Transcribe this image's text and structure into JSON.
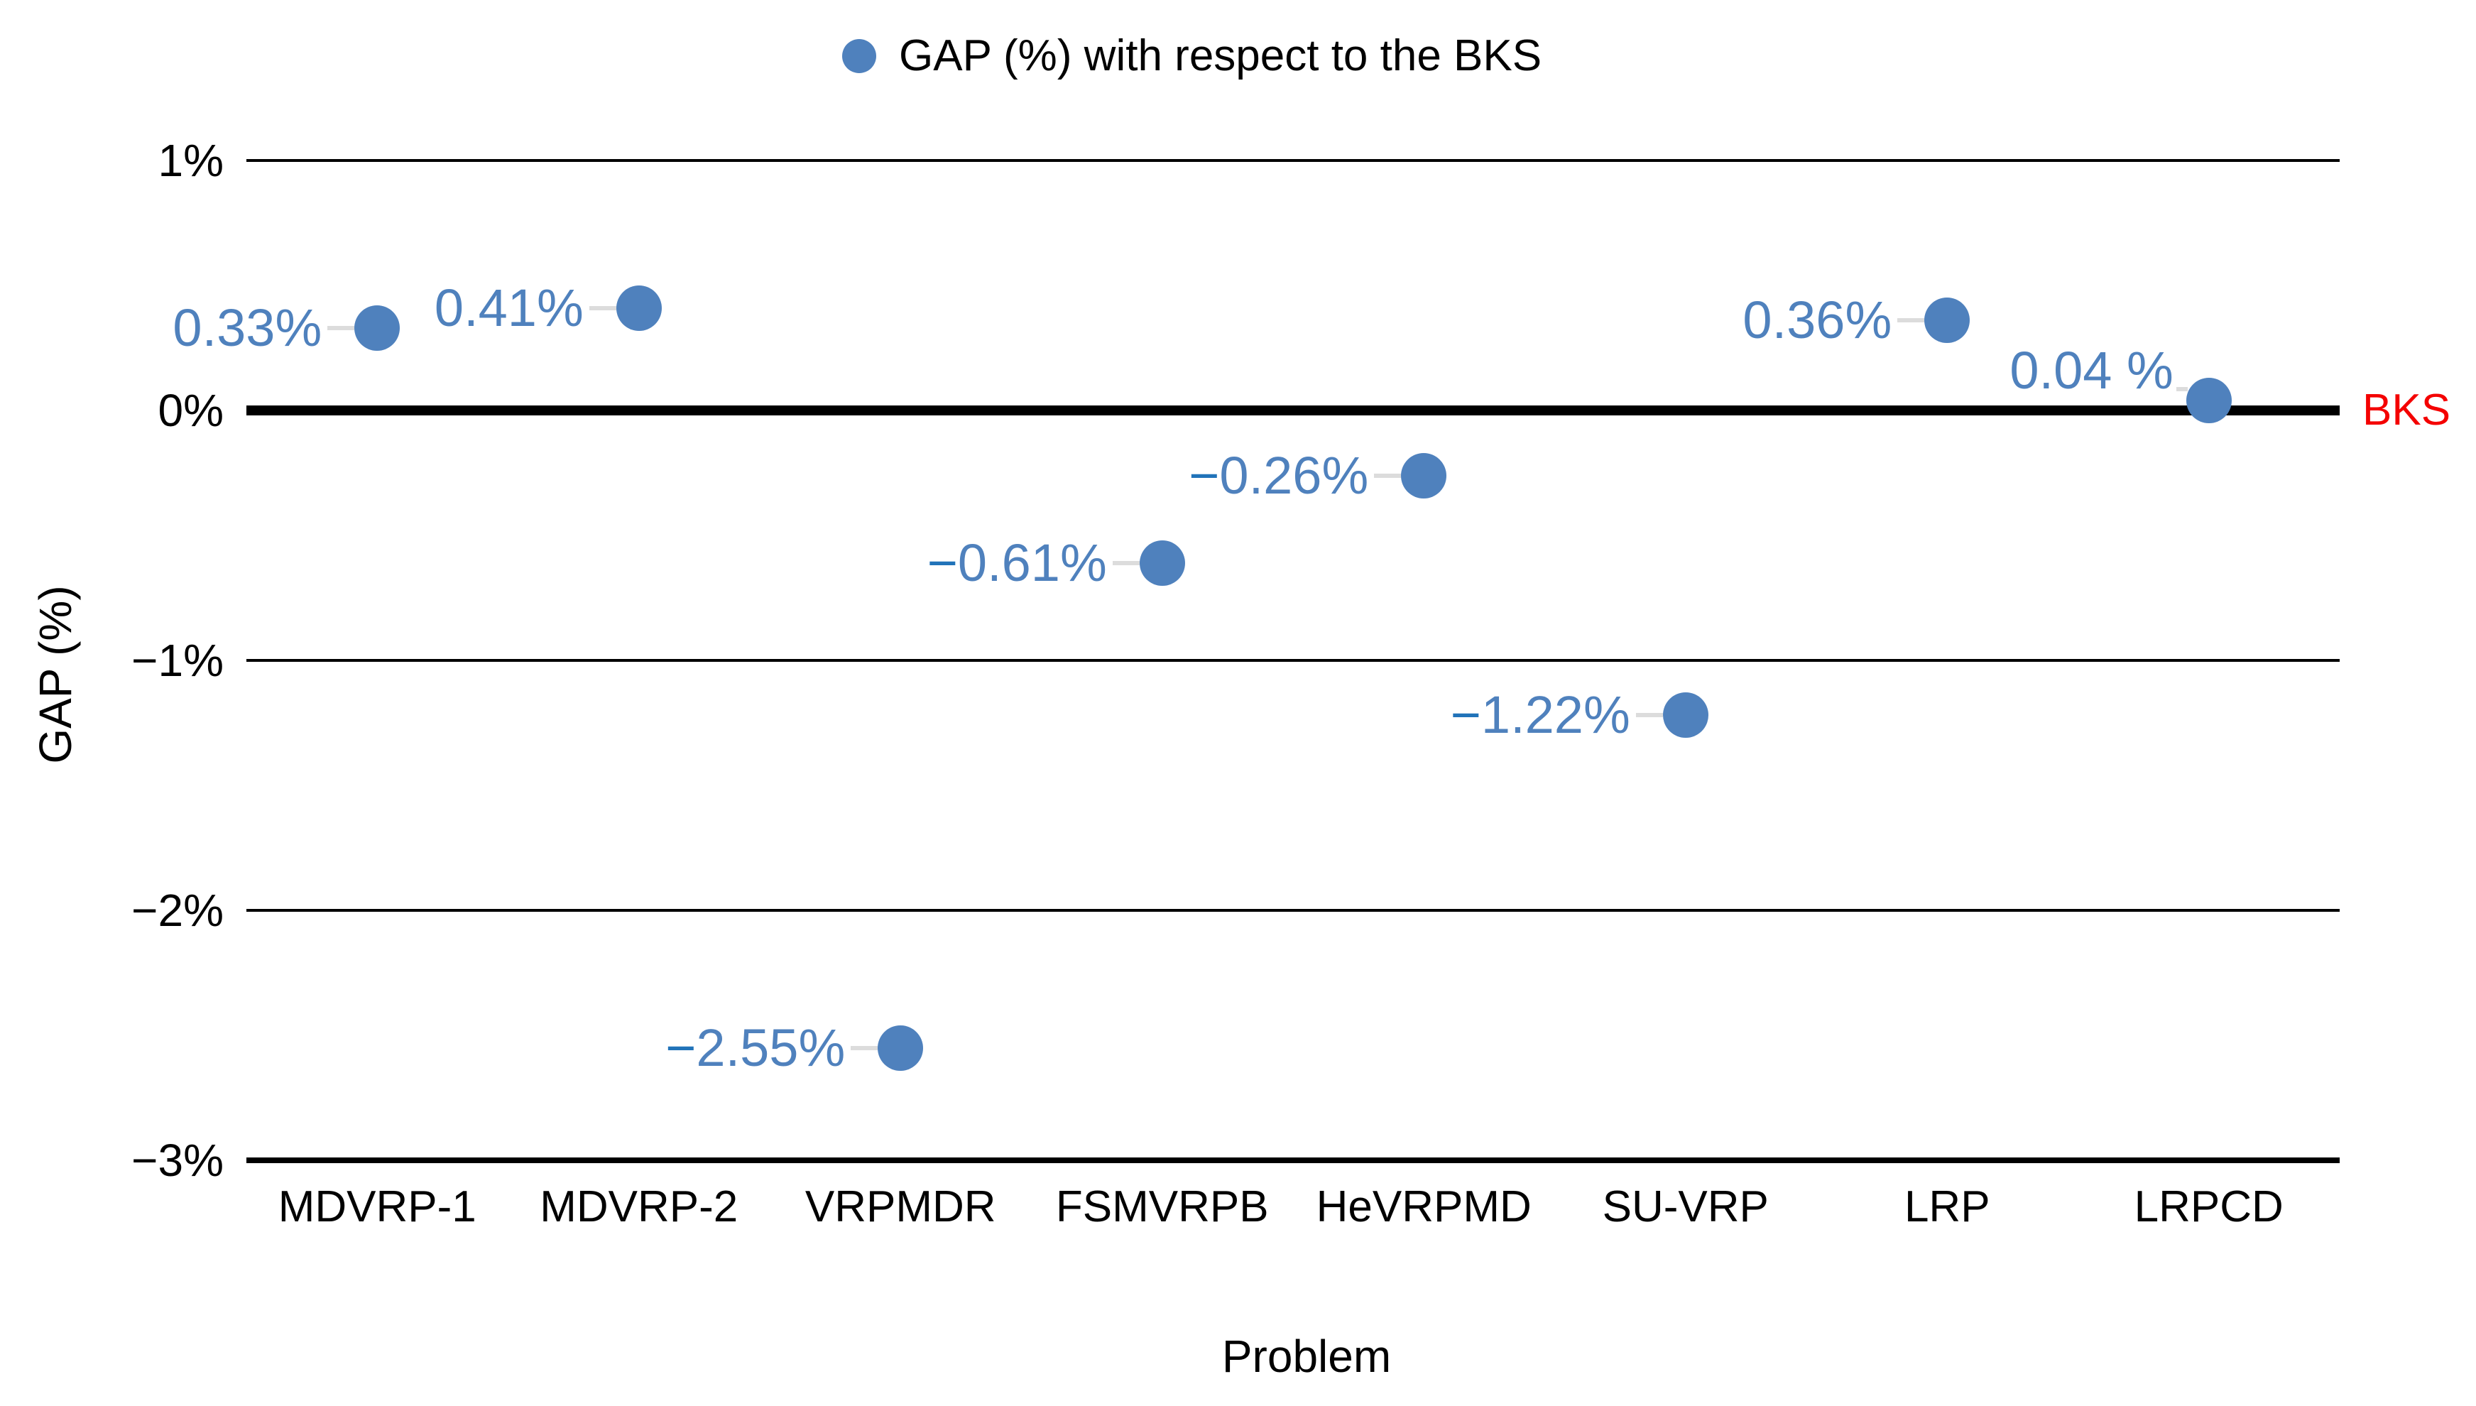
{
  "chart_data": {
    "type": "scatter",
    "title": "",
    "legend_label": "GAP (%) with respect to the BKS",
    "legend_position": "top-center",
    "xlabel": "Problem",
    "ylabel": "GAP (%)",
    "categories": [
      "MDVRP-1",
      "MDVRP-2",
      "VRPMDR",
      "FSMVRPB",
      "HeVRPMD",
      "SU-VRP",
      "LRP",
      "LRPCD"
    ],
    "values": [
      0.33,
      0.41,
      -2.55,
      -0.61,
      -0.26,
      -1.22,
      0.36,
      0.04
    ],
    "point_labels": [
      "0.33%",
      "0.41%",
      "−2.55%",
      "−0.61%",
      "−0.26%",
      "−1.22%",
      "0.36%",
      "0.04 %"
    ],
    "ylim": [
      -3,
      1
    ],
    "y_ticks": [
      {
        "value": 1,
        "label": "1%"
      },
      {
        "value": 0,
        "label": "0%"
      },
      {
        "value": -1,
        "label": "−1%"
      },
      {
        "value": -2,
        "label": "−2%"
      },
      {
        "value": -3,
        "label": "−3%"
      }
    ],
    "grid": "horizontal",
    "reference_line": {
      "value": 0,
      "label": "BKS"
    },
    "colors": {
      "marker": "#4f81bd",
      "point_label": "#4f81bd",
      "point_label_minus": "#2173b9",
      "gridline": "#000000",
      "leader": "#dcdcdc",
      "reference_label": "#f40000",
      "text": "#000000"
    }
  }
}
